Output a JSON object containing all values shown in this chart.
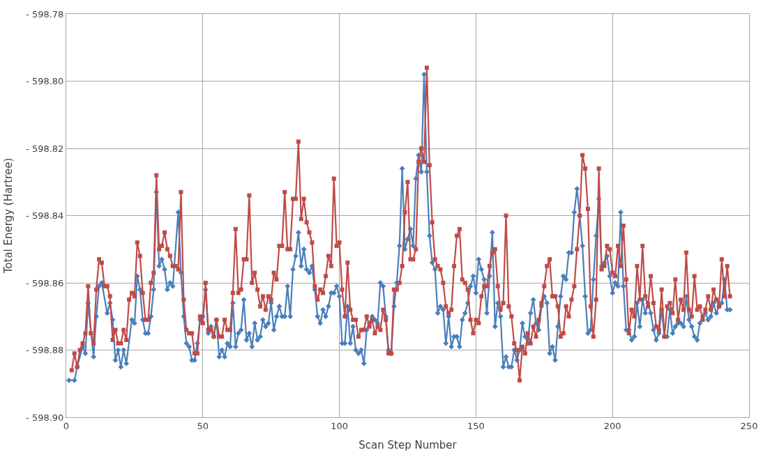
{
  "chart_data": {
    "type": "line",
    "xlabel": "Scan Step Number",
    "ylabel": "Total Energy (Hartree)",
    "xlim": [
      0,
      250
    ],
    "xticks": [
      0,
      50,
      100,
      150,
      200,
      250
    ],
    "ylim": [
      -598.9,
      -598.78
    ],
    "yticks": [
      {
        "value": -598.9,
        "label": "- 598.90"
      },
      {
        "value": -598.88,
        "label": "- 598.88"
      },
      {
        "value": -598.86,
        "label": "- 598.86"
      },
      {
        "value": -598.84,
        "label": "- 598.84"
      },
      {
        "value": -598.82,
        "label": "- 598.82"
      },
      {
        "value": -598.8,
        "label": "- 598.80"
      },
      {
        "value": -598.78,
        "label": "- 598.78"
      }
    ],
    "grid": true,
    "line_style": "solid",
    "series": [
      {
        "color": "#4a7ebb",
        "marker": "diamond",
        "x": [
          1,
          3,
          4,
          6,
          7,
          8,
          10,
          11,
          12,
          13,
          15,
          16,
          17,
          18,
          19,
          20,
          21,
          22,
          24,
          25,
          26,
          27,
          28,
          29,
          30,
          31,
          32,
          33,
          34,
          35,
          36,
          37,
          38,
          39,
          41,
          42,
          43,
          44,
          45,
          46,
          47,
          48,
          49,
          50,
          51,
          52,
          53,
          54,
          55,
          56,
          57,
          58,
          59,
          60,
          61,
          62,
          63,
          64,
          65,
          66,
          67,
          68,
          69,
          70,
          71,
          72,
          73,
          74,
          75,
          76,
          77,
          78,
          79,
          80,
          81,
          82,
          83,
          84,
          85,
          86,
          87,
          88,
          89,
          90,
          91,
          92,
          93,
          94,
          95,
          96,
          97,
          98,
          99,
          100,
          101,
          102,
          103,
          104,
          105,
          106,
          107,
          108,
          109,
          110,
          111,
          112,
          113,
          114,
          115,
          116,
          117,
          118,
          119,
          120,
          121,
          122,
          123,
          124,
          125,
          126,
          127,
          128,
          129,
          130,
          131,
          132,
          133,
          134,
          135,
          136,
          137,
          138,
          139,
          140,
          141,
          142,
          143,
          144,
          145,
          146,
          147,
          148,
          149,
          150,
          151,
          152,
          153,
          154,
          155,
          156,
          157,
          158,
          159,
          160,
          161,
          162,
          163,
          164,
          165,
          166,
          167,
          168,
          169,
          170,
          171,
          172,
          173,
          174,
          175,
          176,
          177,
          178,
          179,
          180,
          181,
          182,
          183,
          184,
          185,
          186,
          187,
          188,
          189,
          190,
          191,
          192,
          193,
          194,
          195,
          196,
          197,
          198,
          199,
          200,
          201,
          202,
          203,
          204,
          205,
          206,
          207,
          208,
          209,
          210,
          211,
          212,
          213,
          214,
          215,
          216,
          217,
          218,
          219,
          220,
          221,
          222,
          223,
          224,
          225,
          226,
          227,
          228,
          229,
          230,
          231,
          232,
          233,
          234,
          235,
          236,
          237,
          238,
          239,
          240,
          241,
          242,
          243
        ],
        "values": [
          -598.889,
          -598.889,
          -598.885,
          -598.879,
          -598.881,
          -598.866,
          -598.882,
          -598.87,
          -598.861,
          -598.86,
          -598.869,
          -598.866,
          -598.871,
          -598.883,
          -598.88,
          -598.885,
          -598.88,
          -598.884,
          -598.871,
          -598.872,
          -598.858,
          -598.862,
          -598.871,
          -598.875,
          -598.875,
          -598.87,
          -598.862,
          -598.833,
          -598.855,
          -598.853,
          -598.856,
          -598.862,
          -598.86,
          -598.861,
          -598.839,
          -598.857,
          -598.87,
          -598.878,
          -598.879,
          -598.883,
          -598.883,
          -598.878,
          -598.871,
          -598.87,
          -598.862,
          -598.875,
          -598.873,
          -598.876,
          -598.871,
          -598.882,
          -598.88,
          -598.882,
          -598.878,
          -598.879,
          -598.866,
          -598.879,
          -598.875,
          -598.874,
          -598.865,
          -598.877,
          -598.875,
          -598.879,
          -598.872,
          -598.877,
          -598.876,
          -598.871,
          -598.873,
          -598.872,
          -598.866,
          -598.874,
          -598.87,
          -598.867,
          -598.87,
          -598.87,
          -598.861,
          -598.87,
          -598.856,
          -598.852,
          -598.845,
          -598.855,
          -598.85,
          -598.856,
          -598.857,
          -598.855,
          -598.862,
          -598.87,
          -598.872,
          -598.868,
          -598.87,
          -598.867,
          -598.863,
          -598.863,
          -598.861,
          -598.864,
          -598.878,
          -598.878,
          -598.867,
          -598.878,
          -598.873,
          -598.88,
          -598.881,
          -598.88,
          -598.884,
          -598.874,
          -598.872,
          -598.87,
          -598.871,
          -598.872,
          -598.86,
          -598.861,
          -598.87,
          -598.88,
          -598.881,
          -598.867,
          -598.86,
          -598.849,
          -598.826,
          -598.85,
          -598.847,
          -598.844,
          -598.849,
          -598.829,
          -598.822,
          -598.827,
          -598.798,
          -598.827,
          -598.846,
          -598.854,
          -598.856,
          -598.869,
          -598.867,
          -598.868,
          -598.878,
          -598.87,
          -598.879,
          -598.876,
          -598.876,
          -598.879,
          -598.871,
          -598.869,
          -598.866,
          -598.861,
          -598.858,
          -598.863,
          -598.853,
          -598.856,
          -598.859,
          -598.869,
          -598.858,
          -598.845,
          -598.873,
          -598.866,
          -598.87,
          -598.885,
          -598.882,
          -598.885,
          -598.885,
          -598.88,
          -598.883,
          -598.88,
          -598.872,
          -598.876,
          -598.878,
          -598.869,
          -598.865,
          -598.872,
          -598.874,
          -598.867,
          -598.864,
          -598.866,
          -598.881,
          -598.879,
          -598.883,
          -598.873,
          -598.864,
          -598.858,
          -598.859,
          -598.851,
          -598.851,
          -598.839,
          -598.832,
          -598.84,
          -598.849,
          -598.864,
          -598.875,
          -598.874,
          -598.859,
          -598.846,
          -598.835,
          -598.855,
          -598.854,
          -598.852,
          -598.858,
          -598.863,
          -598.86,
          -598.861,
          -598.839,
          -598.861,
          -598.874,
          -598.874,
          -598.877,
          -598.876,
          -598.866,
          -598.873,
          -598.865,
          -598.869,
          -598.866,
          -598.869,
          -598.874,
          -598.877,
          -598.875,
          -598.868,
          -598.876,
          -598.876,
          -598.868,
          -598.875,
          -598.873,
          -598.872,
          -598.872,
          -598.873,
          -598.864,
          -598.871,
          -598.873,
          -598.876,
          -598.877,
          -598.872,
          -598.87,
          -598.869,
          -598.871,
          -598.87,
          -598.866,
          -598.869,
          -598.867,
          -598.866,
          -598.859,
          -598.868,
          -598.868
        ]
      },
      {
        "color": "#be4b48",
        "marker": "square",
        "x": [
          2,
          3,
          4,
          5,
          6,
          7,
          8,
          9,
          10,
          11,
          12,
          13,
          14,
          15,
          16,
          17,
          18,
          19,
          20,
          21,
          22,
          23,
          24,
          25,
          26,
          27,
          28,
          29,
          30,
          31,
          32,
          33,
          34,
          35,
          36,
          37,
          38,
          39,
          40,
          41,
          42,
          43,
          44,
          45,
          46,
          47,
          48,
          49,
          50,
          51,
          52,
          53,
          54,
          55,
          56,
          57,
          58,
          59,
          60,
          61,
          62,
          63,
          64,
          65,
          66,
          67,
          68,
          69,
          70,
          71,
          72,
          73,
          74,
          75,
          76,
          77,
          78,
          79,
          80,
          81,
          82,
          83,
          84,
          85,
          86,
          87,
          88,
          89,
          90,
          91,
          92,
          93,
          94,
          95,
          96,
          97,
          98,
          99,
          100,
          101,
          102,
          103,
          104,
          105,
          106,
          107,
          108,
          109,
          110,
          111,
          112,
          113,
          114,
          115,
          116,
          117,
          118,
          119,
          120,
          121,
          122,
          123,
          124,
          125,
          126,
          127,
          128,
          129,
          130,
          131,
          132,
          133,
          134,
          135,
          136,
          137,
          138,
          139,
          140,
          141,
          142,
          143,
          144,
          145,
          146,
          147,
          148,
          149,
          150,
          151,
          152,
          153,
          154,
          155,
          156,
          157,
          158,
          159,
          160,
          161,
          162,
          163,
          164,
          165,
          166,
          167,
          168,
          169,
          170,
          171,
          172,
          173,
          174,
          175,
          176,
          177,
          178,
          179,
          180,
          181,
          182,
          183,
          184,
          185,
          186,
          187,
          188,
          189,
          190,
          191,
          192,
          193,
          194,
          195,
          196,
          197,
          198,
          199,
          200,
          201,
          202,
          203,
          204,
          205,
          206,
          207,
          208,
          209,
          210,
          211,
          212,
          213,
          214,
          215,
          216,
          217,
          218,
          219,
          220,
          221,
          222,
          223,
          224,
          225,
          226,
          227,
          228,
          229,
          230,
          231,
          232,
          233,
          234,
          235,
          236,
          237,
          238,
          239,
          240,
          241,
          242,
          243
        ],
        "values": [
          -598.886,
          -598.881,
          -598.885,
          -598.88,
          -598.878,
          -598.875,
          -598.861,
          -598.875,
          -598.878,
          -598.862,
          -598.853,
          -598.854,
          -598.861,
          -598.861,
          -598.864,
          -598.877,
          -598.874,
          -598.878,
          -598.878,
          -598.874,
          -598.877,
          -598.865,
          -598.863,
          -598.864,
          -598.848,
          -598.852,
          -598.863,
          -598.871,
          -598.871,
          -598.86,
          -598.857,
          -598.828,
          -598.85,
          -598.849,
          -598.845,
          -598.85,
          -598.852,
          -598.855,
          -598.855,
          -598.856,
          -598.833,
          -598.865,
          -598.874,
          -598.875,
          -598.875,
          -598.881,
          -598.881,
          -598.87,
          -598.872,
          -598.86,
          -598.874,
          -598.874,
          -598.876,
          -598.871,
          -598.876,
          -598.876,
          -598.871,
          -598.874,
          -598.874,
          -598.863,
          -598.844,
          -598.863,
          -598.862,
          -598.853,
          -598.853,
          -598.834,
          -598.86,
          -598.857,
          -598.862,
          -598.867,
          -598.864,
          -598.868,
          -598.864,
          -598.865,
          -598.857,
          -598.859,
          -598.849,
          -598.849,
          -598.833,
          -598.85,
          -598.85,
          -598.835,
          -598.835,
          -598.818,
          -598.841,
          -598.835,
          -598.842,
          -598.845,
          -598.848,
          -598.861,
          -598.865,
          -598.862,
          -598.863,
          -598.858,
          -598.852,
          -598.855,
          -598.829,
          -598.849,
          -598.848,
          -598.862,
          -598.87,
          -598.854,
          -598.868,
          -598.871,
          -598.871,
          -598.876,
          -598.874,
          -598.874,
          -598.87,
          -598.873,
          -598.871,
          -598.875,
          -598.873,
          -598.874,
          -598.868,
          -598.871,
          -598.881,
          -598.881,
          -598.862,
          -598.862,
          -598.86,
          -598.855,
          -598.839,
          -598.83,
          -598.853,
          -598.853,
          -598.85,
          -598.824,
          -598.82,
          -598.824,
          -598.796,
          -598.825,
          -598.842,
          -598.853,
          -598.855,
          -598.856,
          -598.86,
          -598.867,
          -598.869,
          -598.868,
          -598.855,
          -598.846,
          -598.844,
          -598.859,
          -598.86,
          -598.862,
          -598.871,
          -598.875,
          -598.871,
          -598.872,
          -598.864,
          -598.861,
          -598.861,
          -598.855,
          -598.851,
          -598.85,
          -598.861,
          -598.868,
          -598.866,
          -598.84,
          -598.867,
          -598.87,
          -598.878,
          -598.88,
          -598.889,
          -598.879,
          -598.881,
          -598.875,
          -598.878,
          -598.873,
          -598.876,
          -598.871,
          -598.866,
          -598.861,
          -598.855,
          -598.853,
          -598.864,
          -598.864,
          -598.867,
          -598.876,
          -598.875,
          -598.867,
          -598.87,
          -598.865,
          -598.861,
          -598.85,
          -598.84,
          -598.822,
          -598.826,
          -598.838,
          -598.867,
          -598.876,
          -598.865,
          -598.826,
          -598.856,
          -598.855,
          -598.849,
          -598.85,
          -598.857,
          -598.858,
          -598.849,
          -598.855,
          -598.843,
          -598.859,
          -598.875,
          -598.868,
          -598.87,
          -598.855,
          -598.865,
          -598.849,
          -598.864,
          -598.867,
          -598.858,
          -598.866,
          -598.873,
          -598.874,
          -598.862,
          -598.876,
          -598.867,
          -598.866,
          -598.869,
          -598.859,
          -598.871,
          -598.865,
          -598.868,
          -598.851,
          -598.868,
          -598.87,
          -598.858,
          -598.868,
          -598.867,
          -598.871,
          -598.868,
          -598.864,
          -598.868,
          -598.862,
          -598.865,
          -598.867,
          -598.853,
          -598.864,
          -598.855,
          -598.864
        ]
      }
    ]
  }
}
